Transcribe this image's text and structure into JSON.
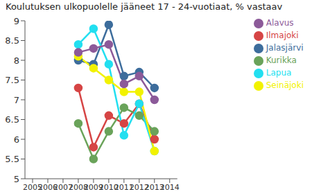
{
  "chart_data": {
    "type": "line",
    "title": "Koulutuksen ulkopuolelle jääneet 17 - 24-vuotiaat, % vastaav",
    "x": [
      2008,
      2009,
      2010,
      2011,
      2012,
      2013
    ],
    "series": [
      {
        "name": "Ilmajoki",
        "color": "#d64545",
        "values": [
          7.3,
          5.8,
          6.6,
          6.4,
          6.9,
          6.0
        ]
      },
      {
        "name": "Kurikka",
        "color": "#6aa35a",
        "values": [
          6.4,
          5.5,
          6.2,
          6.8,
          6.6,
          6.2
        ]
      },
      {
        "name": "Jalasjärvi",
        "color": "#3d6d9c",
        "values": [
          8.0,
          7.9,
          8.9,
          7.6,
          7.7,
          7.3
        ]
      },
      {
        "name": "Lapua",
        "color": "#22dff0",
        "values": [
          8.4,
          8.8,
          7.9,
          6.1,
          6.9,
          5.7
        ]
      },
      {
        "name": "Seinäjoki",
        "color": "#f2f200",
        "values": [
          8.1,
          7.8,
          7.5,
          7.2,
          7.2,
          5.7
        ]
      },
      {
        "name": "Alavus",
        "color": "#8c5a99",
        "values": [
          8.2,
          8.3,
          8.4,
          7.4,
          7.6,
          7.0
        ]
      }
    ],
    "xlim": [
      2004.5,
      2014.5
    ],
    "xticks": [
      2005,
      2006,
      2007,
      2008,
      2009,
      2010,
      2011,
      2012,
      2013,
      2014
    ],
    "ylim": [
      5,
      9
    ],
    "yticks": [
      5,
      5.5,
      6,
      6.5,
      7,
      7.5,
      8,
      8.5,
      9
    ],
    "grid": false,
    "legend": "upper right",
    "marker": "circle"
  }
}
